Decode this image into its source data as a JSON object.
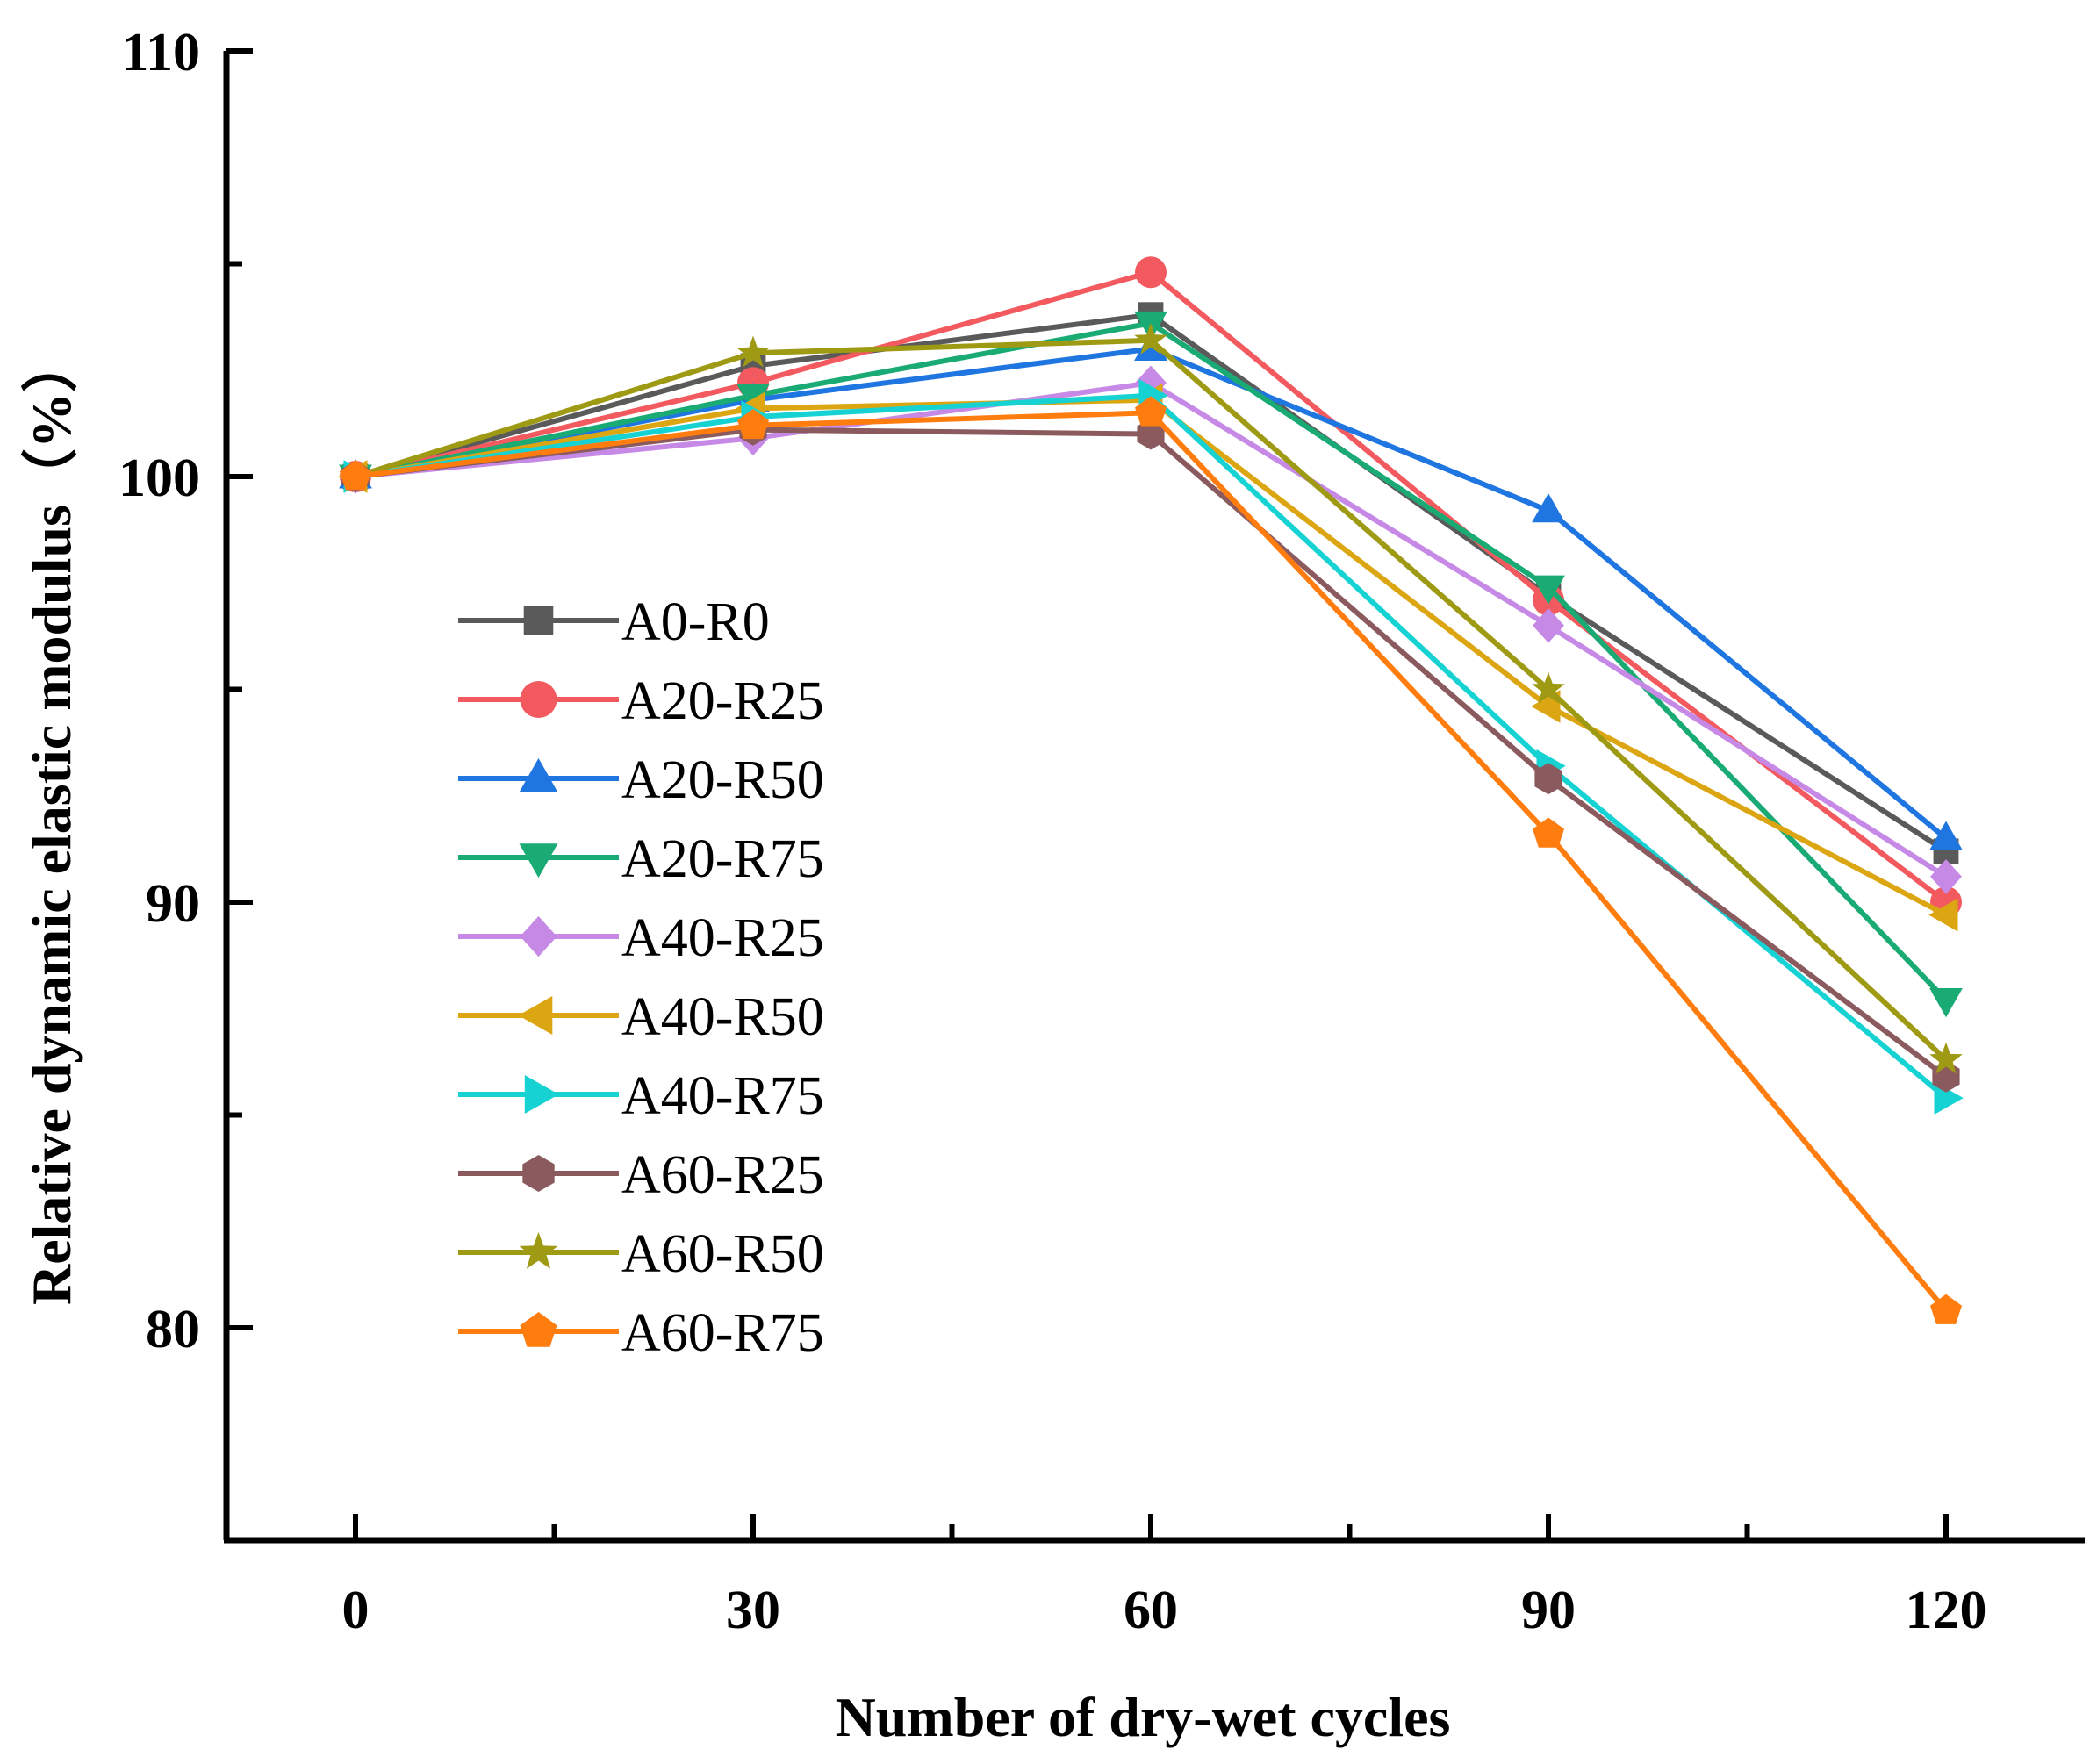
{
  "chart_data": {
    "type": "line",
    "title": "",
    "xlabel": "Number of dry-wet cycles",
    "ylabel": "Relative dynamic elastic modulus（%）",
    "x": [
      0,
      30,
      60,
      90,
      120
    ],
    "x_ticks": [
      "0",
      "30",
      "60",
      "90",
      "120"
    ],
    "xlim": [
      -10,
      130
    ],
    "y_ticks": [
      "80",
      "90",
      "100",
      "110"
    ],
    "ylim": [
      75,
      110
    ],
    "legend_position": "left-center",
    "grid": false,
    "series": [
      {
        "name": "A0-R0",
        "color": "#5a5a5a",
        "marker": "square",
        "values": [
          100,
          102.6,
          103.8,
          97.2,
          91.2
        ]
      },
      {
        "name": "A20-R25",
        "color": "#f25a5f",
        "marker": "circle",
        "values": [
          100,
          102.2,
          104.8,
          97.1,
          90.0
        ]
      },
      {
        "name": "A20-R50",
        "color": "#1f76e0",
        "marker": "triangle-up",
        "values": [
          100,
          101.8,
          103.0,
          99.2,
          91.5
        ]
      },
      {
        "name": "A20-R75",
        "color": "#1aab74",
        "marker": "triangle-down",
        "values": [
          100,
          101.9,
          103.6,
          97.4,
          87.7
        ]
      },
      {
        "name": "A40-R25",
        "color": "#c68ae6",
        "marker": "diamond",
        "values": [
          100,
          100.9,
          102.2,
          96.5,
          90.6
        ]
      },
      {
        "name": "A40-R50",
        "color": "#dca512",
        "marker": "triangle-left",
        "values": [
          100,
          101.6,
          101.8,
          94.6,
          89.7
        ]
      },
      {
        "name": "A40-R75",
        "color": "#16d2d2",
        "marker": "triangle-right",
        "values": [
          100,
          101.4,
          101.9,
          93.2,
          85.4
        ]
      },
      {
        "name": "A60-R25",
        "color": "#8a5a5e",
        "marker": "hexagon",
        "values": [
          100,
          101.1,
          101.0,
          92.9,
          85.9
        ]
      },
      {
        "name": "A60-R50",
        "color": "#9e9a14",
        "marker": "star",
        "values": [
          100,
          102.9,
          103.2,
          95.0,
          86.3
        ]
      },
      {
        "name": "A60-R75",
        "color": "#ff7d0f",
        "marker": "pentagon",
        "values": [
          100,
          101.2,
          101.5,
          91.6,
          80.4
        ]
      }
    ]
  }
}
